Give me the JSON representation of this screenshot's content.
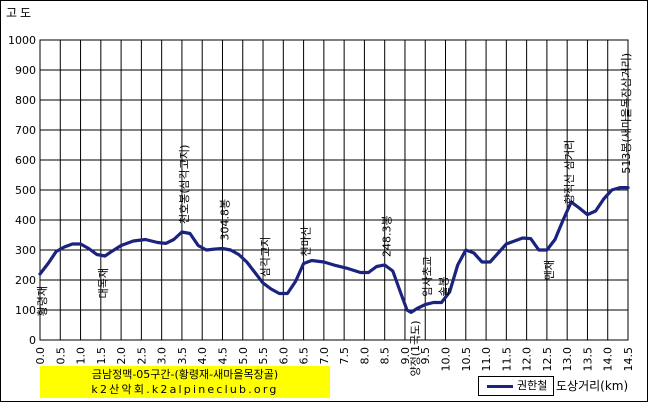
{
  "chart_data": {
    "type": "line",
    "title": "",
    "ylabel": "고도",
    "xlabel": "도상거리(km)",
    "xlim": [
      0,
      14.5
    ],
    "ylim": [
      0,
      1000
    ],
    "x_ticks": [
      "0.0",
      "0.5",
      "1.0",
      "1.5",
      "2.0",
      "2.5",
      "3.0",
      "3.5",
      "4.0",
      "4.5",
      "5.0",
      "5.5",
      "6.0",
      "6.5",
      "7.0",
      "7.5",
      "8.0",
      "8.5",
      "9.0",
      "9.5",
      "10.0",
      "10.5",
      "11.0",
      "11.5",
      "12.0",
      "12.5",
      "13.0",
      "13.5",
      "14.0",
      "14.5"
    ],
    "y_ticks": [
      "0",
      "100",
      "200",
      "300",
      "400",
      "500",
      "600",
      "700",
      "800",
      "900",
      "1000"
    ],
    "grid": true,
    "legend_position": "bottom-right",
    "line_color": "#1a237e",
    "series": [
      {
        "name": "권한철",
        "x": [
          0.0,
          0.2,
          0.4,
          0.6,
          0.8,
          1.0,
          1.2,
          1.4,
          1.6,
          1.8,
          2.0,
          2.3,
          2.6,
          2.9,
          3.1,
          3.3,
          3.5,
          3.7,
          3.9,
          4.1,
          4.3,
          4.5,
          4.7,
          4.9,
          5.1,
          5.3,
          5.5,
          5.7,
          5.9,
          6.1,
          6.3,
          6.5,
          6.7,
          7.0,
          7.3,
          7.6,
          7.9,
          8.1,
          8.3,
          8.5,
          8.7,
          8.9,
          9.05,
          9.15,
          9.3,
          9.5,
          9.7,
          9.9,
          10.1,
          10.3,
          10.5,
          10.7,
          10.9,
          11.1,
          11.3,
          11.5,
          11.7,
          11.9,
          12.1,
          12.3,
          12.5,
          12.7,
          12.9,
          13.1,
          13.3,
          13.5,
          13.7,
          13.9,
          14.1,
          14.3,
          14.5
        ],
        "values": [
          220,
          255,
          295,
          310,
          320,
          320,
          305,
          285,
          280,
          298,
          315,
          330,
          335,
          325,
          322,
          335,
          360,
          355,
          315,
          300,
          303,
          305,
          300,
          285,
          260,
          225,
          190,
          170,
          155,
          155,
          195,
          255,
          265,
          260,
          248,
          238,
          225,
          225,
          245,
          250,
          230,
          155,
          100,
          92,
          105,
          118,
          125,
          125,
          160,
          250,
          300,
          290,
          260,
          260,
          290,
          320,
          330,
          340,
          338,
          300,
          300,
          335,
          400,
          460,
          440,
          418,
          430,
          470,
          500,
          508,
          508
        ]
      }
    ],
    "annotations": [
      {
        "label": "황령재",
        "x": 0.0,
        "y": 220
      },
      {
        "label": "대목재",
        "x": 1.5,
        "y": 280
      },
      {
        "label": "천호봉(삼각고지)",
        "x": 3.5,
        "y": 360
      },
      {
        "label": "304.8봉",
        "x": 4.5,
        "y": 305
      },
      {
        "label": "삼각고지",
        "x": 5.5,
        "y": 190
      },
      {
        "label": "천마산",
        "x": 6.5,
        "y": 265
      },
      {
        "label": "248.3봉",
        "x": 8.5,
        "y": 250
      },
      {
        "label": "양정(1국도)",
        "x": 9.2,
        "y": 92
      },
      {
        "label": "엄사초교",
        "x": 9.5,
        "y": 118
      },
      {
        "label": "솔봉",
        "x": 10.0,
        "y": 125
      },
      {
        "label": "멘재",
        "x": 12.5,
        "y": 300
      },
      {
        "label": "향적산 삼거리",
        "x": 13.0,
        "y": 440
      },
      {
        "label": "513봉(새마을목장삼거리)",
        "x": 14.5,
        "y": 508
      }
    ]
  },
  "caption": {
    "line1": "금남정맥-05구간-(황령재-새마을목장골)",
    "line2": "k2산악회.k2alpineclub.org"
  }
}
